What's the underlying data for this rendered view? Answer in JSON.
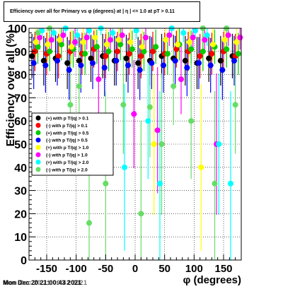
{
  "chart_data": {
    "type": "scatter",
    "title": "Efficiency over all for Primary vs φ (degrees) at | η | <= 1.0 at pT > 0.11",
    "xlabel": "φ (degrees)",
    "ylabel": "Efficiency over all (%)",
    "xlim": [
      -180,
      180
    ],
    "ylim": [
      0,
      100
    ],
    "x_ticks": [
      -150,
      -100,
      -50,
      0,
      50,
      100,
      150
    ],
    "y_ticks": [
      0,
      10,
      20,
      30,
      40,
      50,
      60,
      70,
      80,
      90,
      100
    ],
    "grid": true,
    "legend_position": "left-middle",
    "series": [
      {
        "name": "(+) with p T/|q| > 0.1",
        "color": "#000000",
        "x": [
          -175,
          -155,
          -135,
          -115,
          -95,
          -75,
          -55,
          -35,
          -15,
          5,
          25,
          45,
          65,
          85,
          105,
          125,
          145,
          165
        ],
        "y": [
          88,
          86,
          87,
          85,
          86,
          87,
          88,
          86,
          87,
          85,
          86,
          88,
          87,
          86,
          85,
          87,
          86,
          88
        ]
      },
      {
        "name": "(-) with p T/|q| > 0.1",
        "color": "#ff0000",
        "x": [
          -170,
          -150,
          -130,
          -110,
          -90,
          -70,
          -50,
          -30,
          -10,
          10,
          30,
          50,
          70,
          90,
          110,
          130,
          150,
          170
        ],
        "y": [
          90,
          89,
          88,
          90,
          89,
          91,
          88,
          90,
          89,
          88,
          90,
          89,
          91,
          90,
          88,
          89,
          90,
          88
        ]
      },
      {
        "name": "(+) with p T/|q| > 0.5",
        "color": "#00cc00",
        "x": [
          -165,
          -145,
          -125,
          -105,
          -85,
          -65,
          -45,
          -25,
          -5,
          15,
          35,
          55,
          75,
          95,
          115,
          135,
          155,
          175
        ],
        "y": [
          92,
          90,
          93,
          91,
          89,
          92,
          90,
          93,
          91,
          90,
          92,
          89,
          93,
          91,
          90,
          92,
          91,
          89
        ]
      },
      {
        "name": "(-) with p T/|q| > 0.5",
        "color": "#0000ff",
        "x": [
          -172,
          -152,
          -132,
          -112,
          -92,
          -72,
          -52,
          -32,
          -12,
          8,
          28,
          48,
          68,
          88,
          108,
          128,
          148,
          168
        ],
        "y": [
          85,
          84,
          86,
          82,
          84,
          85,
          83,
          86,
          84,
          82,
          85,
          84,
          86,
          83,
          85,
          84,
          82,
          86
        ]
      },
      {
        "name": "(+) with p T/|q| > 1.0",
        "color": "#ffff00",
        "x": [
          -168,
          -148,
          -128,
          -108,
          -88,
          -68,
          -48,
          -28,
          -8,
          12,
          32,
          52,
          72,
          92,
          112,
          132,
          152,
          172
        ],
        "y": [
          94,
          93,
          95,
          92,
          94,
          96,
          93,
          95,
          94,
          92,
          50,
          95,
          93,
          94,
          40,
          93,
          95,
          94
        ]
      },
      {
        "name": "(-) with p T/|q| > 1.0",
        "color": "#ff00ff",
        "x": [
          -162,
          -142,
          -122,
          -102,
          -82,
          -62,
          -42,
          -22,
          -2,
          18,
          38,
          58,
          78,
          98,
          118,
          138,
          158,
          178
        ],
        "y": [
          96,
          95,
          97,
          94,
          96,
          78,
          95,
          97,
          63,
          96,
          56,
          97,
          78,
          96,
          95,
          50,
          97,
          96
        ]
      },
      {
        "name": "(+) with p T/|q| > 2.0",
        "color": "#00ffff",
        "x": [
          -158,
          -138,
          -118,
          -98,
          -78,
          -58,
          -38,
          -18,
          2,
          22,
          42,
          62,
          82,
          102,
          122,
          142,
          162
        ],
        "y": [
          99,
          98,
          100,
          97,
          99,
          100,
          98,
          40,
          99,
          60,
          33,
          100,
          98,
          99,
          97,
          50,
          33
        ]
      },
      {
        "name": "(-) with p T/|q| > 2.0",
        "color": "#66dd66",
        "x": [
          -165,
          -145,
          -110,
          -95,
          -78,
          -50,
          -20,
          10,
          25,
          45,
          65,
          95,
          115,
          135,
          155,
          170
        ],
        "y": [
          98,
          100,
          67,
          75,
          16,
          33,
          67,
          20,
          66,
          50,
          75,
          60,
          100,
          33,
          100,
          67
        ]
      }
    ]
  },
  "page": {
    "title_box": "Efficiency over all for Primary vs φ (degrees) at | η | <= 1.0 at pT > 0.11",
    "timestamp": "Mon Dec 20 21:00:43 2021",
    "timestamp_overlay": "Mon Dec 20 21:00:42 2021"
  }
}
